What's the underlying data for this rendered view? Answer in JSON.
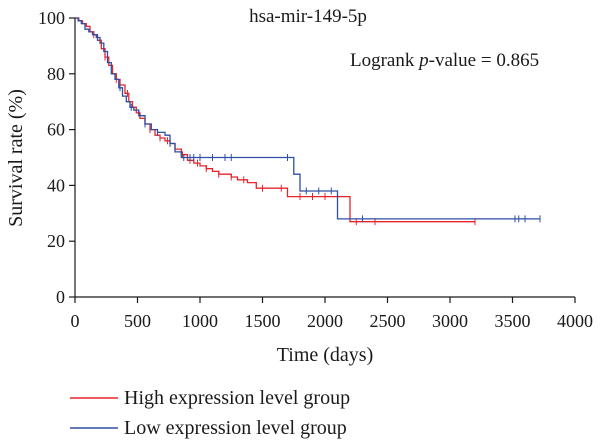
{
  "chart_data": {
    "type": "line",
    "title": "hsa-mir-149-5p",
    "annotation": {
      "prefix": "Logrank ",
      "italic": "p",
      "suffix": "-value = 0.865"
    },
    "xlabel": "Time (days)",
    "ylabel": "Survival rate (%)",
    "xlim": [
      0,
      4000
    ],
    "ylim": [
      0,
      100
    ],
    "xticks": [
      "0",
      "500",
      "1000",
      "1500",
      "2000",
      "2500",
      "3000",
      "3500",
      "4000"
    ],
    "yticks": [
      "0",
      "20",
      "40",
      "60",
      "80",
      "100"
    ],
    "grid": false,
    "legend_position": "bottom-left",
    "series": [
      {
        "name": "High expression level group",
        "color": "#e8242b",
        "step_points": [
          [
            0,
            100
          ],
          [
            30,
            99
          ],
          [
            60,
            98
          ],
          [
            90,
            97
          ],
          [
            120,
            95
          ],
          [
            150,
            94
          ],
          [
            180,
            92
          ],
          [
            210,
            89
          ],
          [
            240,
            86
          ],
          [
            270,
            83
          ],
          [
            300,
            80
          ],
          [
            330,
            78
          ],
          [
            360,
            76
          ],
          [
            400,
            73
          ],
          [
            430,
            70
          ],
          [
            460,
            68
          ],
          [
            490,
            66
          ],
          [
            520,
            64
          ],
          [
            560,
            62
          ],
          [
            600,
            60
          ],
          [
            640,
            58
          ],
          [
            680,
            57
          ],
          [
            720,
            56
          ],
          [
            760,
            55
          ],
          [
            800,
            53
          ],
          [
            850,
            51
          ],
          [
            900,
            49
          ],
          [
            950,
            48
          ],
          [
            1000,
            47
          ],
          [
            1050,
            46
          ],
          [
            1100,
            45
          ],
          [
            1150,
            44
          ],
          [
            1250,
            43
          ],
          [
            1300,
            42
          ],
          [
            1380,
            41
          ],
          [
            1450,
            39
          ],
          [
            1700,
            36
          ],
          [
            2200,
            27
          ],
          [
            3200,
            27
          ]
        ],
        "censor_times": [
          150,
          240,
          330,
          420,
          510,
          600,
          680,
          740,
          800,
          860,
          920,
          980,
          1050,
          1150,
          1250,
          1350,
          1500,
          1650,
          1800,
          1900,
          2000,
          2100,
          2250,
          2400,
          3200
        ]
      },
      {
        "name": "Low expression level group",
        "color": "#2e4fa3",
        "step_points": [
          [
            0,
            100
          ],
          [
            25,
            99
          ],
          [
            50,
            98
          ],
          [
            80,
            96
          ],
          [
            110,
            95
          ],
          [
            140,
            94
          ],
          [
            170,
            93
          ],
          [
            200,
            91
          ],
          [
            230,
            88
          ],
          [
            260,
            84
          ],
          [
            290,
            80
          ],
          [
            320,
            78
          ],
          [
            350,
            75
          ],
          [
            380,
            72
          ],
          [
            410,
            70
          ],
          [
            440,
            68
          ],
          [
            470,
            67
          ],
          [
            510,
            65
          ],
          [
            560,
            62
          ],
          [
            610,
            60
          ],
          [
            660,
            59
          ],
          [
            720,
            58
          ],
          [
            760,
            55
          ],
          [
            800,
            52
          ],
          [
            850,
            50
          ],
          [
            1750,
            44
          ],
          [
            1800,
            38
          ],
          [
            2100,
            28
          ],
          [
            3720,
            28
          ]
        ],
        "censor_times": [
          180,
          360,
          450,
          560,
          660,
          760,
          870,
          920,
          950,
          1000,
          1100,
          1200,
          1250,
          1700,
          1850,
          1950,
          2050,
          2300,
          3520,
          3550,
          3600,
          3720
        ]
      }
    ]
  }
}
